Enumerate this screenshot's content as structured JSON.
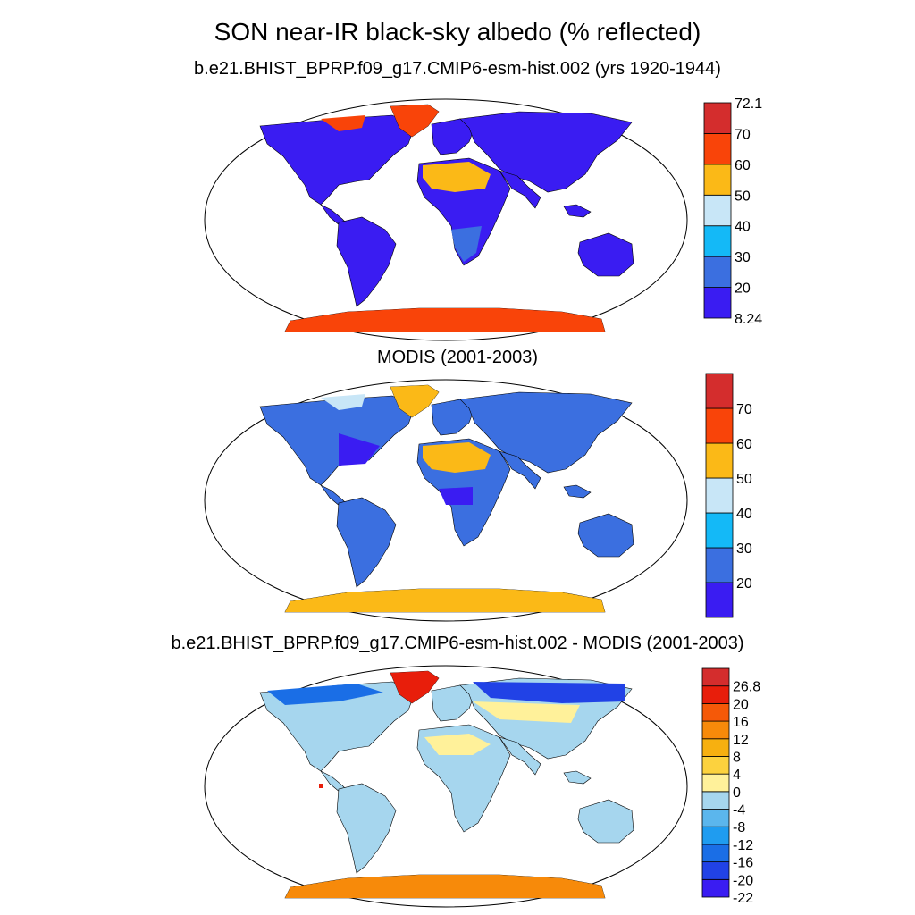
{
  "title": "SON near-IR black-sky albedo (% reflected)",
  "panels": [
    {
      "title": "b.e21.BHIST_BPRP.f09_g17.CMIP6-esm-hist.002 (yrs 1920-1944)",
      "colorbar": {
        "colors": [
          "#3a1cf2",
          "#3b6fe0",
          "#14b9f7",
          "#c8e6f7",
          "#fbb917",
          "#f94409",
          "#d42d2d"
        ],
        "labels": [
          "8.24",
          "20",
          "30",
          "40",
          "50",
          "60",
          "70",
          "72.1"
        ]
      }
    },
    {
      "title": "MODIS (2001-2003)",
      "colorbar": {
        "colors": [
          "#3a1cf2",
          "#3b6fe0",
          "#14b9f7",
          "#c8e6f7",
          "#fbb917",
          "#f94409",
          "#d42d2d"
        ],
        "labels": [
          "",
          "20",
          "30",
          "40",
          "50",
          "60",
          "70",
          ""
        ]
      }
    },
    {
      "title": "b.e21.BHIST_BPRP.f09_g17.CMIP6-esm-hist.002 - MODIS (2001-2003)",
      "colorbar": {
        "colors": [
          "#3a1cf2",
          "#2142e6",
          "#1a6ee6",
          "#1f9cf0",
          "#5bb6ed",
          "#a6d6ee",
          "#fff19a",
          "#fcd23e",
          "#f7b010",
          "#f78a0a",
          "#f55908",
          "#e81e0b",
          "#d42d2d"
        ],
        "labels": [
          "-22",
          "-20",
          "-16",
          "-12",
          "-8",
          "-4",
          "0",
          "4",
          "8",
          "12",
          "16",
          "20",
          "26.8"
        ]
      }
    }
  ]
}
